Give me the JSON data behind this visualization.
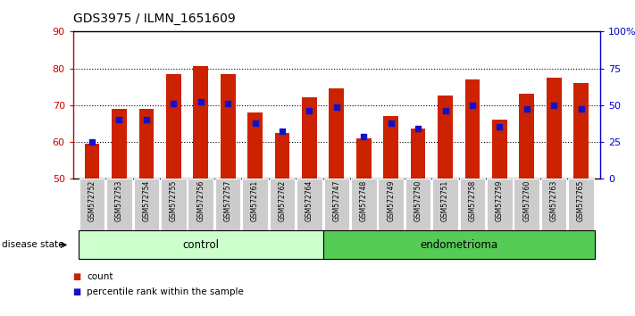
{
  "title": "GDS3975 / ILMN_1651609",
  "samples": [
    "GSM572752",
    "GSM572753",
    "GSM572754",
    "GSM572755",
    "GSM572756",
    "GSM572757",
    "GSM572761",
    "GSM572762",
    "GSM572764",
    "GSM572747",
    "GSM572748",
    "GSM572749",
    "GSM572750",
    "GSM572751",
    "GSM572758",
    "GSM572759",
    "GSM572760",
    "GSM572763",
    "GSM572765"
  ],
  "counts": [
    59.5,
    69.0,
    69.0,
    78.5,
    80.5,
    78.5,
    68.0,
    62.5,
    72.0,
    74.5,
    61.0,
    67.0,
    63.5,
    72.5,
    77.0,
    66.0,
    73.0,
    77.5,
    76.0
  ],
  "percentiles": [
    60.0,
    66.0,
    66.0,
    70.5,
    71.0,
    70.5,
    65.0,
    63.0,
    68.5,
    69.5,
    61.5,
    65.0,
    63.5,
    68.5,
    70.0,
    64.0,
    69.0,
    70.0,
    69.0
  ],
  "control_count": 9,
  "endometrioma_count": 10,
  "ylim_left": [
    50,
    90
  ],
  "ylim_right": [
    0,
    100
  ],
  "right_ticks": [
    0,
    25,
    50,
    75,
    100
  ],
  "right_tick_labels": [
    "0",
    "25",
    "50",
    "75",
    "100%"
  ],
  "left_ticks": [
    50,
    60,
    70,
    80,
    90
  ],
  "bar_color": "#cc2200",
  "percentile_color": "#1111cc",
  "bar_width": 0.55,
  "control_label": "control",
  "endometrioma_label": "endometrioma",
  "disease_state_label": "disease state",
  "legend_count": "count",
  "legend_percentile": "percentile rank within the sample",
  "control_bg": "#ccffcc",
  "endometrioma_bg": "#55cc55",
  "xticklabel_bg": "#cccccc",
  "left_axis_color": "#cc0000",
  "right_axis_color": "#0000cc"
}
